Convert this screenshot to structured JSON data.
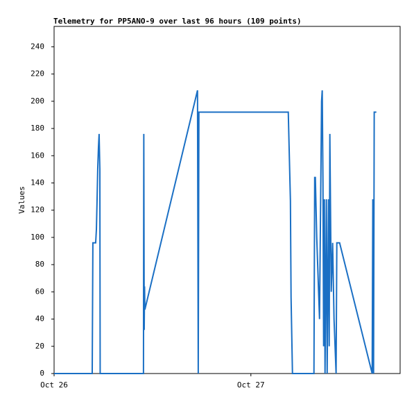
{
  "chart_data": {
    "type": "line",
    "title": "Telemetry for PP5ANO-9 over last 96 hours (109 points)",
    "y_label": "Values",
    "x": [
      0,
      4.65,
      4.73,
      5.07,
      5.16,
      5.24,
      5.32,
      5.41,
      5.49,
      5.58,
      5.62,
      10.9,
      10.94,
      10.99,
      11.03,
      11.07,
      17.49,
      17.58,
      17.66,
      28.56,
      28.65,
      28.82,
      28.9,
      29.07,
      31.69,
      31.78,
      31.86,
      32.03,
      32.37,
      32.62,
      32.7,
      32.79,
      32.87,
      32.96,
      33.04,
      33.21,
      33.3,
      33.47,
      33.55,
      33.63,
      33.8,
      33.97,
      34.14,
      34.39,
      34.48,
      34.82,
      38.79,
      38.83,
      38.87,
      38.96,
      39.04,
      39.3
    ],
    "series": [
      {
        "color": "#1a6fc4",
        "values": [
          0,
          0,
          96,
          96,
          106,
          127,
          150,
          166,
          176,
          150,
          0,
          0,
          176,
          32,
          64,
          47,
          208,
          0,
          192,
          192,
          169,
          127,
          56,
          0,
          0,
          144,
          144,
          100,
          40,
          200,
          208,
          140,
          20,
          128,
          0,
          128,
          0,
          128,
          20,
          176,
          60,
          96,
          40,
          0,
          96,
          96,
          0,
          64,
          128,
          0,
          192,
          192
        ]
      }
    ],
    "xlim": [
      0,
      42.2
    ],
    "xticks": [
      {
        "value": 0,
        "label": "Oct 26"
      },
      {
        "value": 24,
        "label": "Oct 27"
      }
    ],
    "ylim": [
      0,
      255
    ],
    "yticks": [
      0,
      20,
      40,
      60,
      80,
      100,
      120,
      140,
      160,
      180,
      200,
      220,
      240
    ]
  }
}
